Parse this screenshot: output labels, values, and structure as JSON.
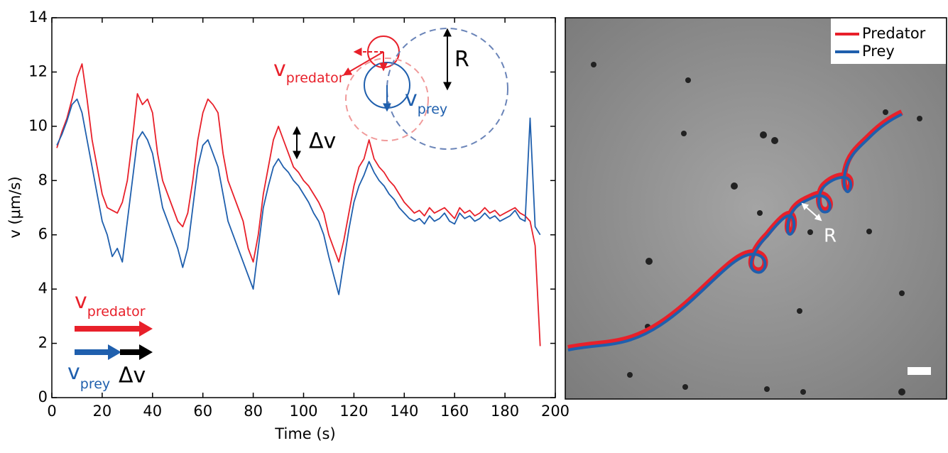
{
  "chart_data": {
    "type": "line",
    "xlabel": "Time (s)",
    "ylabel": "v (μm/s)",
    "x": [
      2,
      4,
      6,
      8,
      10,
      12,
      14,
      16,
      18,
      20,
      22,
      24,
      26,
      28,
      30,
      32,
      34,
      36,
      38,
      40,
      42,
      44,
      46,
      48,
      50,
      52,
      54,
      56,
      58,
      60,
      62,
      64,
      66,
      68,
      70,
      72,
      74,
      76,
      78,
      80,
      82,
      84,
      86,
      88,
      90,
      92,
      94,
      96,
      98,
      100,
      102,
      104,
      106,
      108,
      110,
      112,
      114,
      116,
      118,
      120,
      122,
      124,
      126,
      128,
      130,
      132,
      134,
      136,
      138,
      140,
      142,
      144,
      146,
      148,
      150,
      152,
      154,
      156,
      158,
      160,
      162,
      164,
      166,
      168,
      170,
      172,
      174,
      176,
      178,
      180,
      182,
      184,
      186,
      188,
      190,
      192,
      194
    ],
    "series": [
      {
        "name": "Predator",
        "color": "#e8202a",
        "values": [
          9.2,
          9.8,
          10.3,
          11.0,
          11.8,
          12.3,
          11.0,
          9.5,
          8.5,
          7.5,
          7.0,
          6.9,
          6.8,
          7.2,
          8.0,
          9.5,
          11.2,
          10.8,
          11.0,
          10.5,
          9.0,
          8.0,
          7.5,
          7.0,
          6.5,
          6.3,
          6.8,
          8.0,
          9.5,
          10.5,
          11.0,
          10.8,
          10.5,
          9.0,
          8.0,
          7.5,
          7.0,
          6.5,
          5.5,
          5.0,
          6.0,
          7.5,
          8.5,
          9.5,
          10.0,
          9.5,
          9.0,
          8.5,
          8.3,
          8.0,
          7.8,
          7.5,
          7.2,
          6.8,
          6.0,
          5.5,
          5.0,
          5.8,
          6.8,
          7.8,
          8.5,
          8.8,
          9.5,
          8.8,
          8.5,
          8.3,
          8.0,
          7.8,
          7.5,
          7.2,
          7.0,
          6.8,
          6.9,
          6.7,
          7.0,
          6.8,
          6.9,
          7.0,
          6.8,
          6.6,
          7.0,
          6.8,
          6.9,
          6.7,
          6.8,
          7.0,
          6.8,
          6.9,
          6.7,
          6.8,
          6.9,
          7.0,
          6.8,
          6.7,
          6.5,
          5.6,
          1.9
        ]
      },
      {
        "name": "Prey",
        "color": "#1f5fad",
        "values": [
          9.3,
          9.7,
          10.2,
          10.8,
          11.0,
          10.5,
          9.5,
          8.5,
          7.5,
          6.5,
          6.0,
          5.2,
          5.5,
          5.0,
          6.5,
          8.0,
          9.5,
          9.8,
          9.5,
          9.0,
          8.0,
          7.0,
          6.5,
          6.0,
          5.5,
          4.8,
          5.5,
          7.0,
          8.5,
          9.3,
          9.5,
          9.0,
          8.5,
          7.5,
          6.5,
          6.0,
          5.5,
          5.0,
          4.5,
          4.0,
          5.5,
          7.0,
          7.8,
          8.5,
          8.8,
          8.5,
          8.3,
          8.0,
          7.8,
          7.5,
          7.2,
          6.8,
          6.5,
          6.0,
          5.2,
          4.5,
          3.8,
          5.0,
          6.2,
          7.2,
          7.8,
          8.2,
          8.7,
          8.3,
          8.0,
          7.8,
          7.5,
          7.3,
          7.0,
          6.8,
          6.6,
          6.5,
          6.6,
          6.4,
          6.7,
          6.5,
          6.6,
          6.8,
          6.5,
          6.4,
          6.8,
          6.6,
          6.7,
          6.5,
          6.6,
          6.8,
          6.6,
          6.7,
          6.5,
          6.6,
          6.7,
          6.9,
          6.6,
          6.5,
          10.3,
          6.3,
          6.0
        ]
      }
    ],
    "xlim": [
      0,
      200
    ],
    "xticks": [
      0,
      20,
      40,
      60,
      80,
      100,
      120,
      140,
      160,
      180,
      200
    ],
    "ylim": [
      0,
      14
    ],
    "yticks": [
      0,
      2,
      4,
      6,
      8,
      10,
      12,
      14
    ],
    "grid": false,
    "annotations": [
      {
        "text": "v",
        "sub": "predator"
      },
      {
        "text": "v",
        "sub": "prey"
      },
      {
        "text": "R"
      },
      {
        "text": "Δv"
      },
      {
        "text": "v",
        "sub": "predator"
      },
      {
        "text": "v",
        "sub": "prey"
      },
      {
        "text": "Δv"
      }
    ]
  },
  "image_panel": {
    "legend": [
      "Predator",
      "Prey"
    ],
    "label": "R"
  }
}
